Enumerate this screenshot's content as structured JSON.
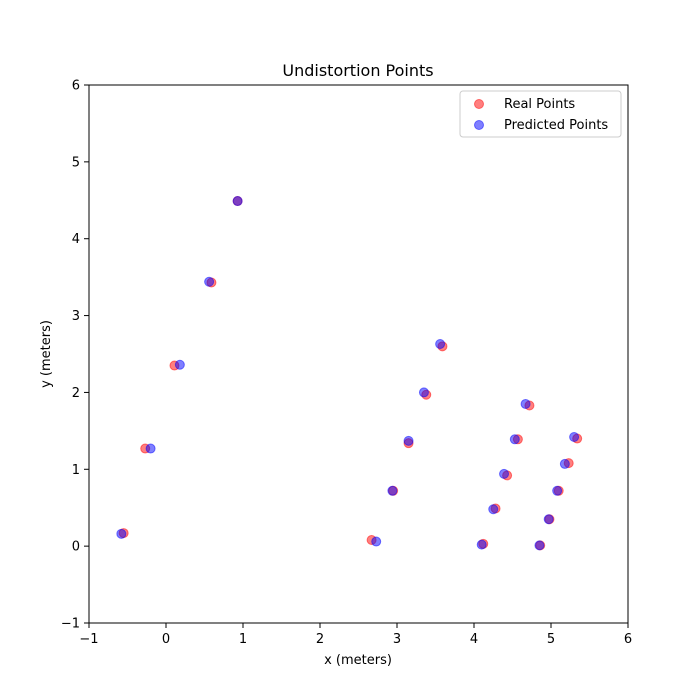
{
  "chart_data": {
    "type": "scatter",
    "title": "Undistortion Points",
    "xlabel": "x (meters)",
    "ylabel": "y (meters)",
    "xlim": [
      -1,
      6
    ],
    "ylim": [
      -1,
      6
    ],
    "xticks": [
      "−1",
      "0",
      "1",
      "2",
      "3",
      "4",
      "5",
      "6"
    ],
    "yticks": [
      "−1",
      "0",
      "1",
      "2",
      "3",
      "4",
      "5",
      "6"
    ],
    "grid": false,
    "legend_position": "top-right",
    "series": [
      {
        "name": "Real Points",
        "color": "#ff0000",
        "alpha": 0.5,
        "points": [
          [
            -0.55,
            0.17
          ],
          [
            -0.27,
            1.27
          ],
          [
            0.11,
            2.35
          ],
          [
            0.59,
            3.43
          ],
          [
            0.93,
            4.49
          ],
          [
            2.67,
            0.08
          ],
          [
            2.95,
            0.72
          ],
          [
            3.15,
            1.34
          ],
          [
            3.38,
            1.97
          ],
          [
            3.59,
            2.6
          ],
          [
            4.12,
            0.03
          ],
          [
            4.28,
            0.49
          ],
          [
            4.43,
            0.92
          ],
          [
            4.57,
            1.39
          ],
          [
            4.72,
            1.83
          ],
          [
            4.86,
            0.01
          ],
          [
            4.98,
            0.35
          ],
          [
            5.1,
            0.72
          ],
          [
            5.23,
            1.08
          ],
          [
            5.34,
            1.4
          ]
        ]
      },
      {
        "name": "Predicted Points",
        "color": "#0000ff",
        "alpha": 0.5,
        "points": [
          [
            -0.58,
            0.16
          ],
          [
            -0.2,
            1.27
          ],
          [
            0.18,
            2.36
          ],
          [
            0.56,
            3.44
          ],
          [
            0.93,
            4.49
          ],
          [
            2.73,
            0.06
          ],
          [
            2.94,
            0.72
          ],
          [
            3.15,
            1.37
          ],
          [
            3.35,
            2.0
          ],
          [
            3.56,
            2.63
          ],
          [
            4.1,
            0.02
          ],
          [
            4.25,
            0.48
          ],
          [
            4.39,
            0.94
          ],
          [
            4.53,
            1.39
          ],
          [
            4.67,
            1.85
          ],
          [
            4.85,
            0.01
          ],
          [
            4.97,
            0.35
          ],
          [
            5.08,
            0.72
          ],
          [
            5.18,
            1.07
          ],
          [
            5.3,
            1.42
          ]
        ]
      }
    ]
  }
}
